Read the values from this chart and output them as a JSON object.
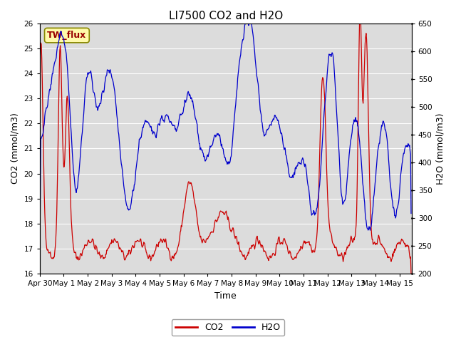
{
  "title": "LI7500 CO2 and H2O",
  "xlabel": "Time",
  "ylabel_left": "CO2 (mmol/m3)",
  "ylabel_right": "H2O (mmol/m3)",
  "ylim_left": [
    16.0,
    26.0
  ],
  "ylim_right": [
    200,
    650
  ],
  "co2_color": "#CC0000",
  "h2o_color": "#0000CC",
  "bg_color": "#DCDCDC",
  "legend_label_co2": "CO2",
  "legend_label_h2o": "H2O",
  "annotation_text": "TW_flux",
  "x_tick_labels": [
    "Apr 30",
    "May 1",
    "May 2",
    "May 3",
    "May 4",
    "May 5",
    "May 6",
    "May 7",
    "May 8",
    "May 9",
    "May 10",
    "May 11",
    "May 12",
    "May 13",
    "May 14",
    "May 15"
  ],
  "yticks_left": [
    16.0,
    17.0,
    18.0,
    19.0,
    20.0,
    21.0,
    22.0,
    23.0,
    24.0,
    25.0,
    26.0
  ],
  "yticks_right": [
    200,
    250,
    300,
    350,
    400,
    450,
    500,
    550,
    600,
    650
  ],
  "title_fontsize": 11,
  "axis_label_fontsize": 9,
  "tick_fontsize": 7.5,
  "legend_fontsize": 9
}
